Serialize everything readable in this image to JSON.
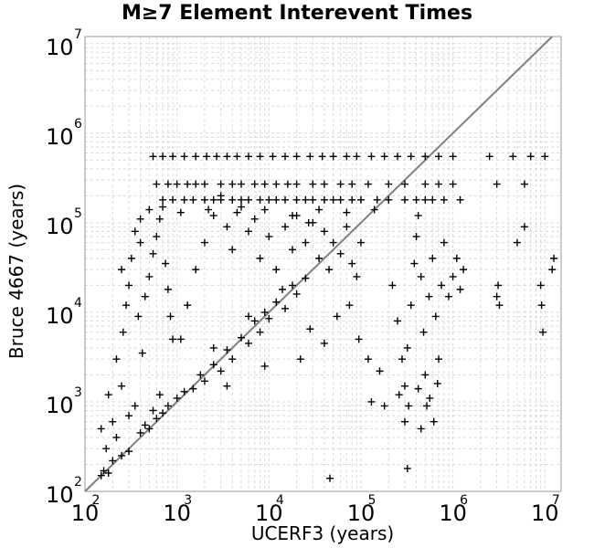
{
  "chart_data": {
    "type": "scatter",
    "title": "M≥7 Element Interevent Times",
    "xlabel": "UCERF3 (years)",
    "ylabel": "Bruce 4667 (years)",
    "xscale": "log",
    "yscale": "log",
    "xlim": [
      100,
      15000000
    ],
    "ylim": [
      100,
      12000000
    ],
    "x_ticks": [
      {
        "base": "10",
        "exp": "2",
        "value": 100
      },
      {
        "base": "10",
        "exp": "3",
        "value": 1000
      },
      {
        "base": "10",
        "exp": "4",
        "value": 10000
      },
      {
        "base": "10",
        "exp": "5",
        "value": 100000
      },
      {
        "base": "10",
        "exp": "6",
        "value": 1000000
      },
      {
        "base": "10",
        "exp": "7",
        "value": 10000000
      }
    ],
    "y_ticks": [
      {
        "base": "10",
        "exp": "2",
        "value": 100
      },
      {
        "base": "10",
        "exp": "3",
        "value": 1000
      },
      {
        "base": "10",
        "exp": "4",
        "value": 10000
      },
      {
        "base": "10",
        "exp": "5",
        "value": 100000
      },
      {
        "base": "10",
        "exp": "6",
        "value": 1000000
      },
      {
        "base": "10",
        "exp": "7",
        "value": 10000000
      }
    ],
    "grid": true,
    "reference_line": {
      "type": "y=x",
      "color": "#808080"
    },
    "marker": "+",
    "marker_color": "#000000",
    "grid_color": "#d9d9d9",
    "series": [
      {
        "values": [
          [
            150,
            150
          ],
          [
            160,
            170
          ],
          [
            180,
            160
          ],
          [
            200,
            220
          ],
          [
            170,
            300
          ],
          [
            220,
            400
          ],
          [
            250,
            250
          ],
          [
            300,
            280
          ],
          [
            200,
            600
          ],
          [
            180,
            1200
          ],
          [
            150,
            500
          ],
          [
            250,
            1500
          ],
          [
            300,
            700
          ],
          [
            350,
            900
          ],
          [
            400,
            450
          ],
          [
            450,
            550
          ],
          [
            500,
            500
          ],
          [
            550,
            800
          ],
          [
            600,
            650
          ],
          [
            650,
            1200
          ],
          [
            700,
            750
          ],
          [
            800,
            900
          ],
          [
            220,
            3000
          ],
          [
            260,
            6000
          ],
          [
            280,
            12000
          ],
          [
            300,
            20000
          ],
          [
            320,
            40000
          ],
          [
            350,
            80000
          ],
          [
            250,
            30000
          ],
          [
            400,
            60000
          ],
          [
            380,
            9000
          ],
          [
            420,
            3500
          ],
          [
            450,
            15000
          ],
          [
            500,
            25000
          ],
          [
            550,
            45000
          ],
          [
            600,
            70000
          ],
          [
            650,
            110000
          ],
          [
            700,
            150000
          ],
          [
            750,
            35000
          ],
          [
            800,
            18000
          ],
          [
            850,
            9000
          ],
          [
            900,
            5000
          ],
          [
            1000,
            1100
          ],
          [
            1200,
            1300
          ],
          [
            1500,
            1400
          ],
          [
            1800,
            2000
          ],
          [
            2000,
            1700
          ],
          [
            2500,
            2600
          ],
          [
            3000,
            2200
          ],
          [
            3500,
            3800
          ],
          [
            4000,
            3000
          ],
          [
            5000,
            5200
          ],
          [
            6000,
            4500
          ],
          [
            7000,
            8000
          ],
          [
            8000,
            6000
          ],
          [
            9000,
            10000
          ],
          [
            10000,
            8500
          ],
          [
            12000,
            13000
          ],
          [
            15000,
            11000
          ],
          [
            18000,
            20000
          ],
          [
            20000,
            16000
          ],
          [
            25000,
            24000
          ],
          [
            1100,
            5000
          ],
          [
            1300,
            12000
          ],
          [
            1600,
            30000
          ],
          [
            2000,
            60000
          ],
          [
            2500,
            120000
          ],
          [
            3000,
            200000
          ],
          [
            3500,
            90000
          ],
          [
            4000,
            50000
          ],
          [
            5000,
            150000
          ],
          [
            6000,
            80000
          ],
          [
            7000,
            110000
          ],
          [
            8000,
            40000
          ],
          [
            10000,
            70000
          ],
          [
            12000,
            30000
          ],
          [
            15000,
            90000
          ],
          [
            18000,
            50000
          ],
          [
            20000,
            120000
          ],
          [
            25000,
            60000
          ],
          [
            30000,
            100000
          ],
          [
            35000,
            40000
          ],
          [
            40000,
            80000
          ],
          [
            45000,
            30000
          ],
          [
            50000,
            60000
          ],
          [
            60000,
            45000
          ],
          [
            70000,
            90000
          ],
          [
            80000,
            35000
          ],
          [
            90000,
            25000
          ],
          [
            100000,
            60000
          ],
          [
            700,
            180000
          ],
          [
            900,
            180000
          ],
          [
            1200,
            180000
          ],
          [
            1500,
            180000
          ],
          [
            2000,
            180000
          ],
          [
            2500,
            180000
          ],
          [
            3000,
            180000
          ],
          [
            4000,
            180000
          ],
          [
            5000,
            180000
          ],
          [
            6000,
            180000
          ],
          [
            8000,
            180000
          ],
          [
            10000,
            180000
          ],
          [
            12000,
            180000
          ],
          [
            15000,
            180000
          ],
          [
            20000,
            180000
          ],
          [
            25000,
            180000
          ],
          [
            30000,
            180000
          ],
          [
            40000,
            180000
          ],
          [
            50000,
            180000
          ],
          [
            60000,
            180000
          ],
          [
            80000,
            180000
          ],
          [
            100000,
            180000
          ],
          [
            150000,
            180000
          ],
          [
            200000,
            180000
          ],
          [
            300000,
            180000
          ],
          [
            400000,
            180000
          ],
          [
            500000,
            180000
          ],
          [
            600000,
            180000
          ],
          [
            800000,
            180000
          ],
          [
            1200000,
            180000
          ],
          [
            600,
            270000
          ],
          [
            800,
            270000
          ],
          [
            1000,
            270000
          ],
          [
            1300,
            270000
          ],
          [
            1600,
            270000
          ],
          [
            2000,
            270000
          ],
          [
            3000,
            270000
          ],
          [
            4000,
            270000
          ],
          [
            5000,
            270000
          ],
          [
            7000,
            270000
          ],
          [
            9000,
            270000
          ],
          [
            12000,
            270000
          ],
          [
            16000,
            270000
          ],
          [
            20000,
            270000
          ],
          [
            30000,
            270000
          ],
          [
            40000,
            270000
          ],
          [
            60000,
            270000
          ],
          [
            80000,
            270000
          ],
          [
            120000,
            270000
          ],
          [
            200000,
            270000
          ],
          [
            300000,
            270000
          ],
          [
            500000,
            270000
          ],
          [
            700000,
            270000
          ],
          [
            1000000,
            270000
          ],
          [
            3000000,
            270000
          ],
          [
            6000000,
            270000
          ],
          [
            550,
            550000
          ],
          [
            700,
            550000
          ],
          [
            900,
            550000
          ],
          [
            1200,
            550000
          ],
          [
            1600,
            550000
          ],
          [
            2100,
            550000
          ],
          [
            2700,
            550000
          ],
          [
            3500,
            550000
          ],
          [
            4500,
            550000
          ],
          [
            6000,
            550000
          ],
          [
            8000,
            550000
          ],
          [
            11000,
            550000
          ],
          [
            15000,
            550000
          ],
          [
            20000,
            550000
          ],
          [
            28000,
            550000
          ],
          [
            38000,
            550000
          ],
          [
            50000,
            550000
          ],
          [
            70000,
            550000
          ],
          [
            90000,
            550000
          ],
          [
            130000,
            550000
          ],
          [
            180000,
            550000
          ],
          [
            250000,
            550000
          ],
          [
            350000,
            550000
          ],
          [
            500000,
            550000
          ],
          [
            700000,
            550000
          ],
          [
            1000000,
            550000
          ],
          [
            2500000,
            550000
          ],
          [
            4500000,
            550000
          ],
          [
            7000000,
            550000
          ],
          [
            10000000,
            550000
          ],
          [
            400,
            110000
          ],
          [
            500,
            140000
          ],
          [
            1100,
            130000
          ],
          [
            2200,
            140000
          ],
          [
            4500,
            130000
          ],
          [
            9000,
            140000
          ],
          [
            18000,
            120000
          ],
          [
            35000,
            140000
          ],
          [
            70000,
            130000
          ],
          [
            140000,
            140000
          ],
          [
            220000,
            20000
          ],
          [
            250000,
            8000
          ],
          [
            280000,
            3000
          ],
          [
            300000,
            1500
          ],
          [
            320000,
            4000
          ],
          [
            350000,
            12000
          ],
          [
            380000,
            35000
          ],
          [
            400000,
            70000
          ],
          [
            420000,
            120000
          ],
          [
            450000,
            25000
          ],
          [
            480000,
            6000
          ],
          [
            500000,
            2000
          ],
          [
            520000,
            900
          ],
          [
            550000,
            15000
          ],
          [
            600000,
            40000
          ],
          [
            650000,
            9000
          ],
          [
            700000,
            3000
          ],
          [
            750000,
            20000
          ],
          [
            800000,
            60000
          ],
          [
            900000,
            15000
          ],
          [
            260000,
            1200
          ],
          [
            330000,
            900
          ],
          [
            420000,
            1400
          ],
          [
            560000,
            1100
          ],
          [
            620000,
            600
          ],
          [
            680000,
            1600
          ],
          [
            300000,
            600
          ],
          [
            450000,
            500
          ],
          [
            1000000,
            25000
          ],
          [
            1100000,
            40000
          ],
          [
            1200000,
            18000
          ],
          [
            1300000,
            30000
          ],
          [
            3000000,
            15000
          ],
          [
            3100000,
            20000
          ],
          [
            3200000,
            12000
          ],
          [
            9000000,
            20000
          ],
          [
            9200000,
            12000
          ],
          [
            9500000,
            6000
          ],
          [
            12000000,
            30000
          ],
          [
            12500000,
            40000
          ],
          [
            5000000,
            60000
          ],
          [
            6000000,
            90000
          ],
          [
            2500,
            4000
          ],
          [
            3500,
            1500
          ],
          [
            6000,
            9000
          ],
          [
            9000,
            2500
          ],
          [
            14000,
            18000
          ],
          [
            22000,
            3000
          ],
          [
            28000,
            6500
          ],
          [
            40000,
            4500
          ],
          [
            55000,
            9000
          ],
          [
            75000,
            12000
          ],
          [
            95000,
            5000
          ],
          [
            120000,
            3000
          ],
          [
            130000,
            1000
          ],
          [
            160000,
            2200
          ],
          [
            180000,
            900
          ],
          [
            46000,
            140
          ],
          [
            320000,
            180
          ],
          [
            27000,
            100000
          ]
        ]
      }
    ]
  }
}
